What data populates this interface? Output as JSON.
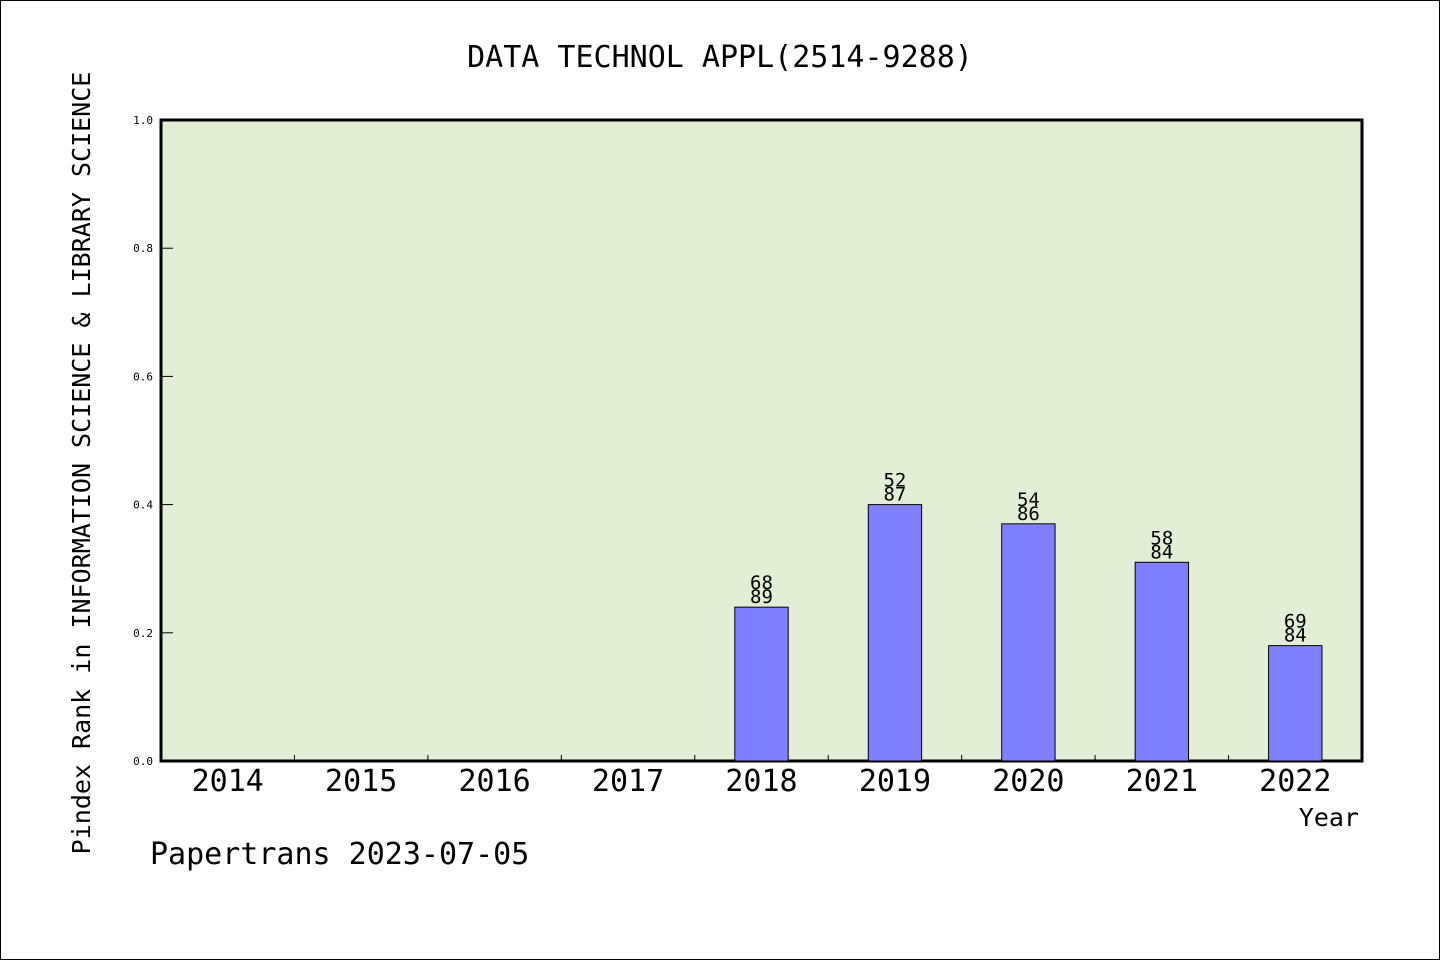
{
  "chart_data": {
    "type": "bar",
    "title": "DATA TECHNOL APPL(2514-9288)",
    "xlabel": "Year",
    "ylabel": "Pindex Rank in INFORMATION SCIENCE & LIBRARY SCIENCE",
    "footer": "Papertrans 2023-07-05",
    "categories": [
      "2014",
      "2015",
      "2016",
      "2017",
      "2018",
      "2019",
      "2020",
      "2021",
      "2022"
    ],
    "values": [
      null,
      null,
      null,
      null,
      0.24,
      0.4,
      0.37,
      0.31,
      0.18
    ],
    "bar_labels": [
      null,
      null,
      null,
      null,
      {
        "top": "68",
        "bottom": "89"
      },
      {
        "top": "52",
        "bottom": "87"
      },
      {
        "top": "54",
        "bottom": "86"
      },
      {
        "top": "58",
        "bottom": "84"
      },
      {
        "top": "69",
        "bottom": "84"
      }
    ],
    "yticks": [
      "0.0",
      "0.2",
      "0.4",
      "0.6",
      "0.8",
      "1.0"
    ],
    "ylim": [
      0,
      1
    ],
    "grid": false,
    "colors": {
      "plot_background": "#e2efd6",
      "bar_fill": "#8080ff",
      "bar_stroke": "#000000"
    }
  }
}
